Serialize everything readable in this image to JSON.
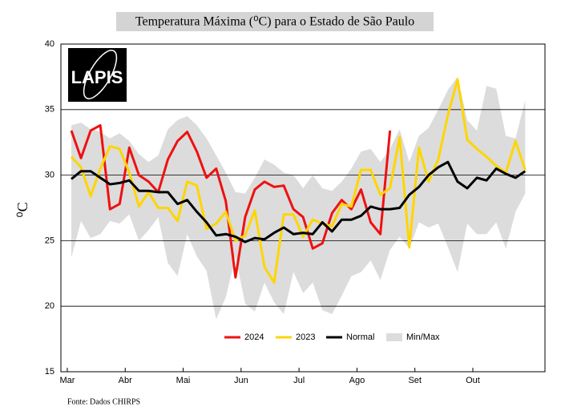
{
  "chart_data": {
    "type": "line",
    "title": "Temperatura Máxima (⁰C) para o Estado de São Paulo",
    "y_label": "⁰C",
    "source": "Fonte: Dados CHIRPS",
    "logo": "LAPIS",
    "x": [
      0,
      1,
      2,
      3,
      4,
      5,
      6,
      7,
      8,
      9,
      10,
      11,
      12,
      13,
      14,
      15,
      16,
      17,
      18,
      19,
      20,
      21,
      22,
      23,
      24,
      25,
      26,
      27,
      28,
      29,
      30,
      31,
      32,
      33,
      34,
      35,
      36,
      37,
      38,
      39,
      40,
      41,
      42,
      43,
      44,
      45,
      46,
      47
    ],
    "xlim": [
      -1.08,
      49.05
    ],
    "xticks": [
      {
        "value": -0.42,
        "label": "Mar"
      },
      {
        "value": 5.58,
        "label": "Abr"
      },
      {
        "value": 11.58,
        "label": "Mai"
      },
      {
        "value": 17.58,
        "label": "Jun"
      },
      {
        "value": 23.58,
        "label": "Jul"
      },
      {
        "value": 29.58,
        "label": "Ago"
      },
      {
        "value": 35.58,
        "label": "Set"
      },
      {
        "value": 41.58,
        "label": "Out"
      }
    ],
    "ylim": [
      15,
      40
    ],
    "yticks": [
      15,
      20,
      25,
      30,
      35,
      40
    ],
    "grid": true,
    "series": [
      {
        "name": "2024",
        "color": "#ee1111",
        "values": [
          33.4,
          31.3,
          33.4,
          33.8,
          27.4,
          27.8,
          32.1,
          30.0,
          29.5,
          28.7,
          31.2,
          32.6,
          33.3,
          31.8,
          29.8,
          30.5,
          28.0,
          22.2,
          26.8,
          28.9,
          29.5,
          29.1,
          29.2,
          27.4,
          26.8,
          24.4,
          24.8,
          27.1,
          28.1,
          27.4,
          28.9,
          26.4,
          25.5,
          33.4,
          null,
          null,
          null,
          null,
          null,
          null,
          null,
          null,
          null,
          null,
          null,
          null,
          null,
          null
        ]
      },
      {
        "name": "2023",
        "color": "#ffd500",
        "values": [
          31.4,
          30.6,
          28.4,
          30.5,
          32.2,
          32.0,
          30.2,
          27.6,
          28.7,
          27.5,
          27.5,
          26.5,
          29.5,
          29.2,
          25.9,
          26.3,
          27.2,
          25.0,
          25.4,
          27.3,
          23.0,
          21.8,
          27.0,
          27.0,
          25.3,
          26.6,
          26.3,
          26.1,
          27.8,
          27.6,
          30.4,
          30.4,
          28.5,
          29.0,
          32.9,
          24.5,
          32.1,
          29.5,
          31.2,
          34.6,
          37.3,
          32.7,
          32.0,
          31.4,
          30.7,
          30.2,
          32.6,
          30.4
        ]
      },
      {
        "name": "Normal",
        "color": "#000000",
        "values": [
          29.7,
          30.3,
          30.3,
          29.8,
          29.3,
          29.4,
          29.6,
          28.8,
          28.8,
          28.7,
          28.7,
          27.8,
          28.1,
          27.2,
          26.4,
          25.4,
          25.5,
          25.3,
          24.9,
          25.2,
          25.1,
          25.6,
          26.0,
          25.5,
          25.6,
          25.5,
          26.4,
          25.7,
          26.6,
          26.6,
          26.9,
          27.6,
          27.4,
          27.4,
          27.5,
          28.5,
          29.1,
          30.0,
          30.6,
          31.0,
          29.5,
          29.0,
          29.8,
          29.6,
          30.5,
          30.1,
          29.8,
          30.3
        ]
      },
      {
        "name": "Min/Max",
        "color": "#dcdcdc",
        "band": true,
        "upper": [
          33.8,
          34.0,
          33.5,
          33.3,
          32.8,
          33.2,
          32.6,
          31.6,
          31.0,
          31.5,
          33.5,
          34.2,
          34.5,
          33.8,
          32.8,
          31.5,
          30.2,
          28.7,
          28.6,
          29.8,
          31.2,
          30.8,
          30.2,
          30.0,
          29.0,
          30.0,
          29.0,
          28.8,
          29.5,
          30.5,
          31.8,
          32.0,
          31.0,
          32.0,
          33.5,
          31.0,
          33.0,
          33.6,
          35.0,
          36.5,
          37.5,
          34.2,
          33.4,
          36.8,
          36.6,
          33.0,
          32.8,
          35.7
        ],
        "lower": [
          23.7,
          26.5,
          25.2,
          25.5,
          26.5,
          26.3,
          27.0,
          25.0,
          25.8,
          26.8,
          23.3,
          22.3,
          25.5,
          23.8,
          22.7,
          19.0,
          20.7,
          23.8,
          20.2,
          19.6,
          21.8,
          20.3,
          19.4,
          22.6,
          21.0,
          21.8,
          19.7,
          19.4,
          20.8,
          22.3,
          22.6,
          23.5,
          22.0,
          24.3,
          25.3,
          24.4,
          26.4,
          26.0,
          26.3,
          24.5,
          22.6,
          26.3,
          25.5,
          25.5,
          26.4,
          24.4,
          27.2,
          28.6
        ]
      }
    ]
  }
}
